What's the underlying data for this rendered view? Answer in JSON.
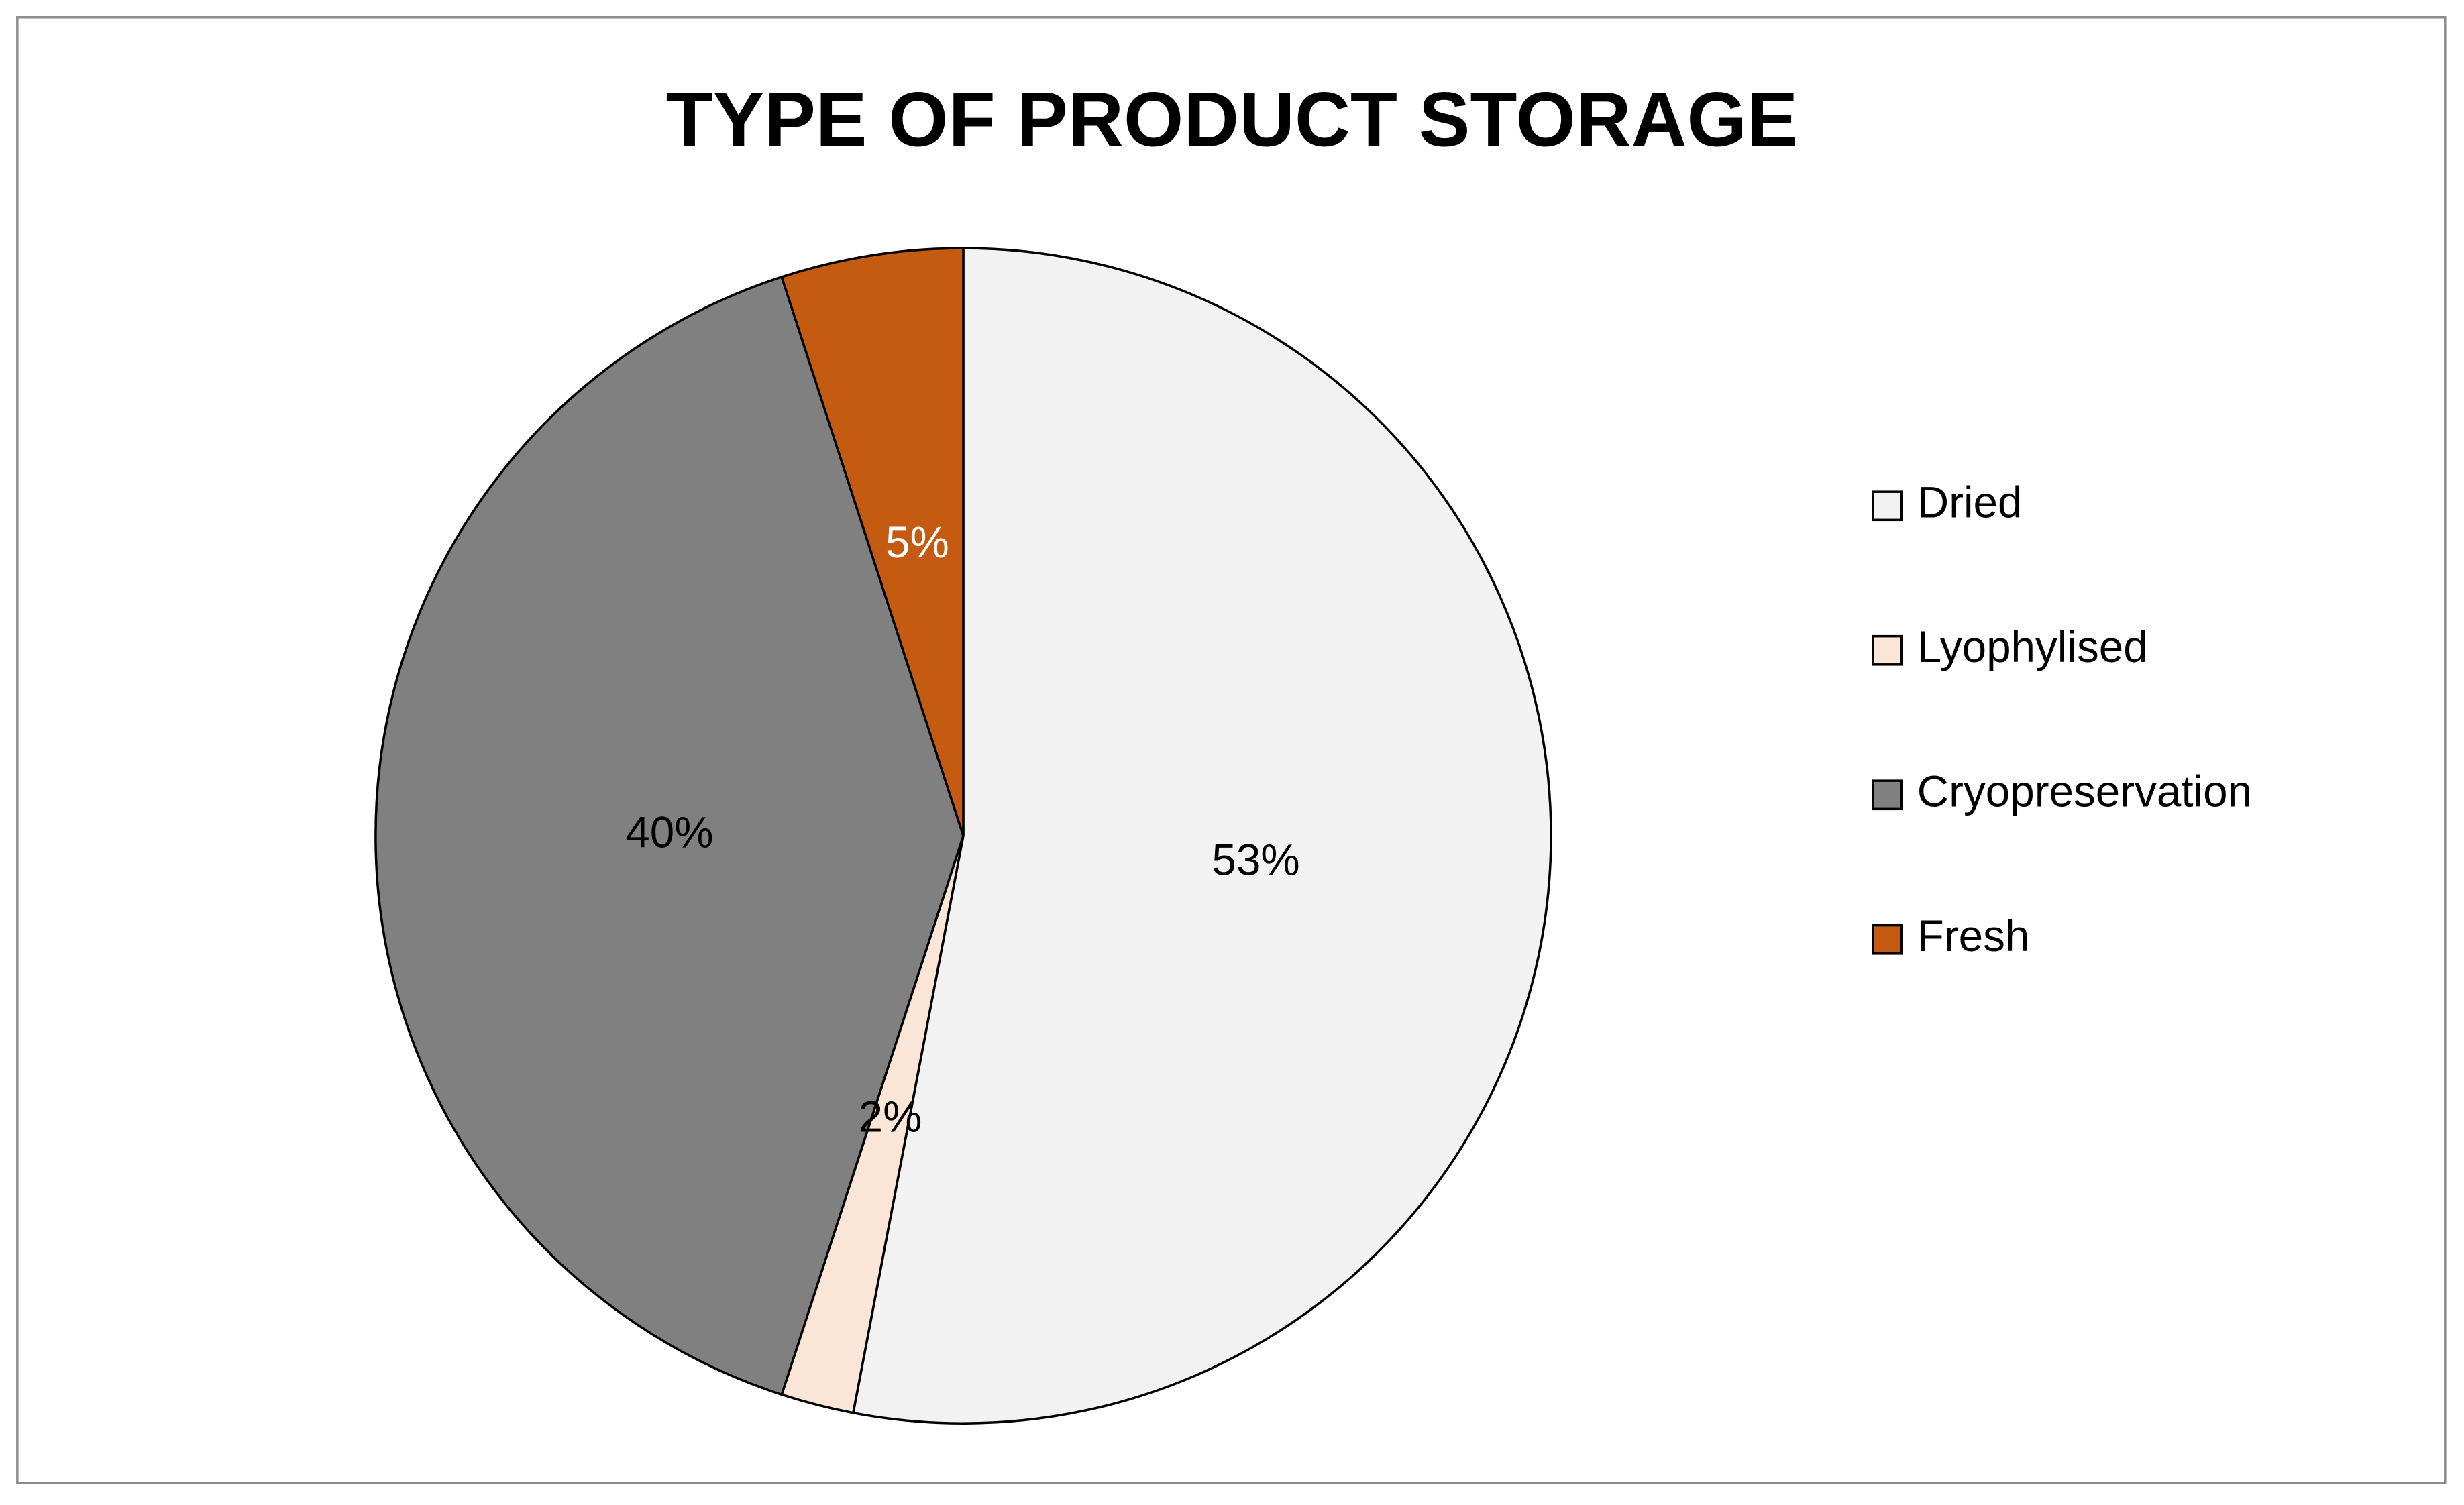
{
  "chart_data": {
    "type": "pie",
    "title": "TYPE OF PRODUCT STORAGE",
    "categories": [
      "Dried",
      "Lyophylised",
      "Cryopreservation",
      "Fresh"
    ],
    "values": [
      53,
      2,
      40,
      5
    ],
    "value_labels": [
      "53%",
      "2%",
      "40%",
      "5%"
    ],
    "colors": [
      "#f2f2f2",
      "#fbe5d6",
      "#808080",
      "#c55a11"
    ],
    "legend": "right"
  }
}
